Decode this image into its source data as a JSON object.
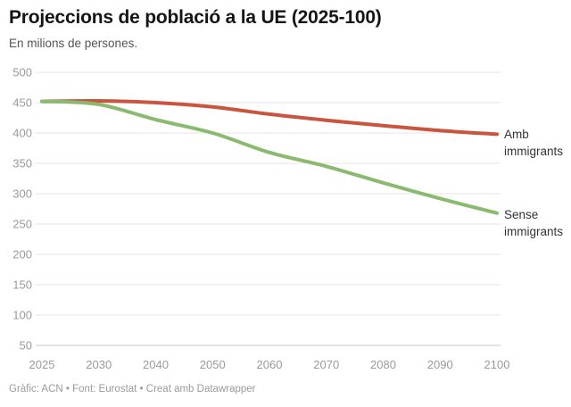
{
  "chart_data": {
    "type": "line",
    "title": "Projeccions de població a la UE (2025-100)",
    "subtitle": "En milions de persones.",
    "categories": [
      "2025",
      "2030",
      "2040",
      "2050",
      "2060",
      "2070",
      "2080",
      "2090",
      "2100"
    ],
    "yticks": [
      500,
      450,
      400,
      350,
      300,
      250,
      200,
      150,
      100,
      50
    ],
    "ylim": [
      50,
      500
    ],
    "grid": "horizontal-only",
    "legend_position": "labels-at-line-end",
    "grid_color": "#e4e4e4",
    "baseline_color": "#c9c9c9",
    "series": [
      {
        "name": "Amb immigrants",
        "label_lines": [
          "Amb",
          "immigrants"
        ],
        "color": "#c9553e",
        "values": [
          452,
          453,
          450,
          443,
          431,
          421,
          412,
          404,
          398
        ]
      },
      {
        "name": "Sense immigrants",
        "label_lines": [
          "Sense",
          "immigrants"
        ],
        "color": "#8aba6f",
        "values": [
          452,
          447,
          422,
          400,
          368,
          345,
          318,
          292,
          268
        ]
      }
    ]
  },
  "footer": {
    "credit": "Gràfic: ACN • Font: Eurostat • Creat amb Datawrapper"
  }
}
